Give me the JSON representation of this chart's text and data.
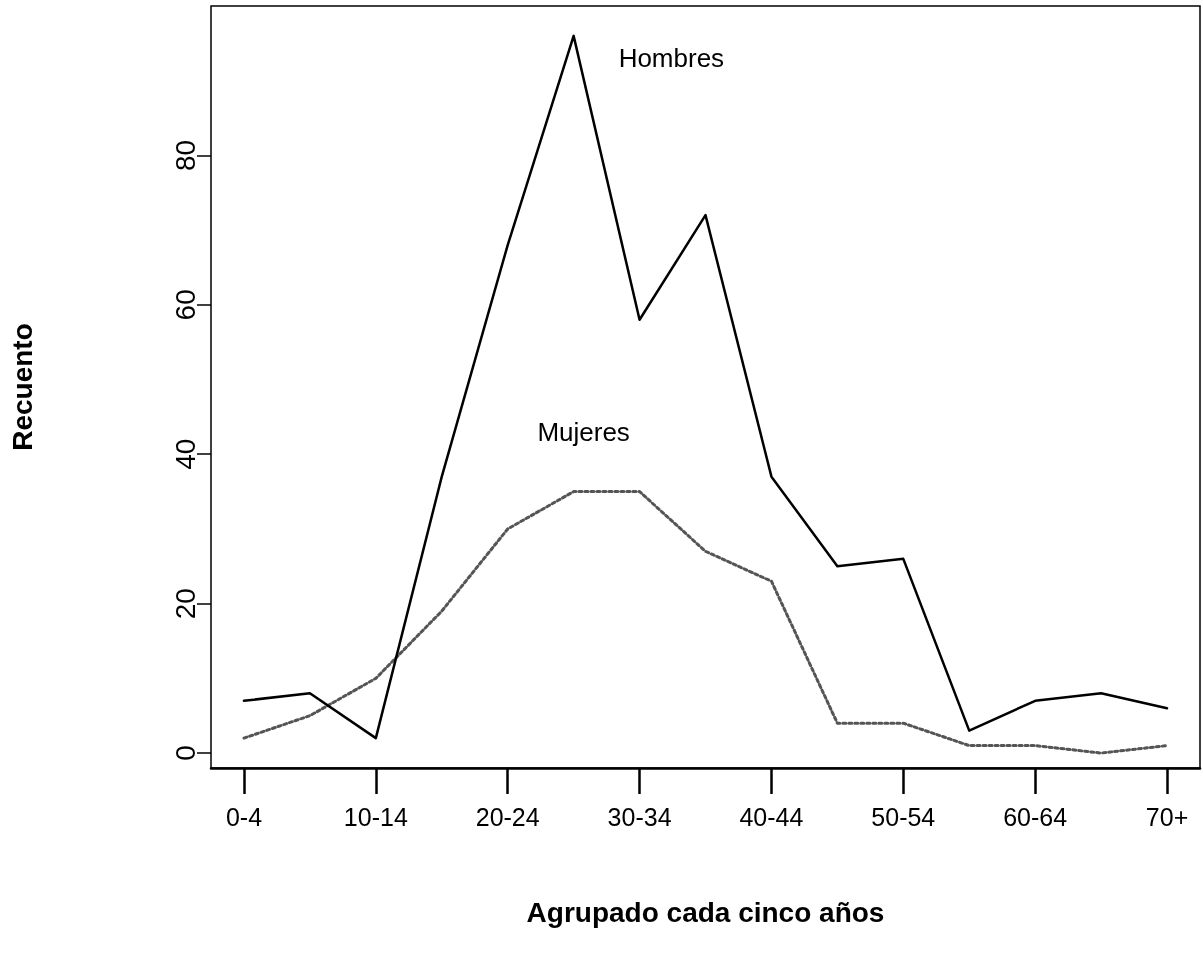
{
  "chart_data": {
    "type": "line",
    "xlabel": "Agrupado cada cinco años",
    "ylabel": "Recuento",
    "categories": [
      "0-4",
      null,
      "10-14",
      null,
      "20-24",
      null,
      "30-34",
      null,
      "40-44",
      null,
      "50-54",
      null,
      "60-64",
      null,
      "70+"
    ],
    "series": [
      {
        "name": "Hombres",
        "color": "#000000",
        "line_style": "solid",
        "values": [
          7,
          8,
          2,
          37,
          68,
          96,
          58,
          72,
          37,
          25,
          26,
          3,
          7,
          8,
          6
        ]
      },
      {
        "name": "Mujeres",
        "color": "#555555",
        "line_style": "dotted",
        "values": [
          2,
          5,
          10,
          19,
          30,
          35,
          35,
          27,
          23,
          4,
          4,
          1,
          1,
          0,
          1
        ]
      }
    ],
    "ylim": [
      -2,
      100
    ],
    "yticks": [
      0,
      20,
      40,
      60,
      80
    ],
    "grid": false,
    "marker": "none"
  }
}
